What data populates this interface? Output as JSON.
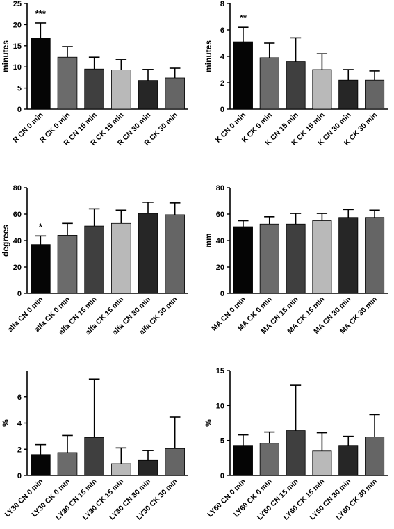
{
  "colors": {
    "bars": [
      "#050505",
      "#6b6b6b",
      "#3f3f3f",
      "#b9b9b9",
      "#262626",
      "#656565"
    ],
    "axis": "#000000",
    "error_bars": "#000000"
  },
  "chart_data": [
    {
      "type": "bar",
      "ylabel": "minutes",
      "ylim": [
        0,
        25
      ],
      "yticks": [
        0,
        5,
        10,
        15,
        20,
        25
      ],
      "categories": [
        "R CN 0 min",
        "R CK 0 min",
        "R CN 15 min",
        "R CK 15 min",
        "R CN 30 min",
        "R CK 30 min"
      ],
      "values": [
        16.8,
        12.3,
        9.5,
        9.3,
        6.8,
        7.4
      ],
      "errors": [
        3.6,
        2.5,
        2.8,
        2.4,
        2.6,
        2.3
      ],
      "annotations": [
        {
          "category": "R CN 0 min",
          "text": "***"
        }
      ],
      "grid": false
    },
    {
      "type": "bar",
      "ylabel": "minutes",
      "ylim": [
        0,
        8
      ],
      "yticks": [
        0,
        2,
        4,
        6,
        8
      ],
      "categories": [
        "K CN 0 min",
        "K CK 0 min",
        "K CN 15 min",
        "K CK 15 min",
        "K CN 30 min",
        "K CK 30 min"
      ],
      "values": [
        5.1,
        3.9,
        3.6,
        3.0,
        2.2,
        2.2
      ],
      "errors": [
        1.1,
        1.1,
        1.8,
        1.2,
        0.8,
        0.7
      ],
      "annotations": [
        {
          "category": "K CN 0 min",
          "text": "**"
        }
      ],
      "grid": false
    },
    {
      "type": "bar",
      "ylabel": "degrees",
      "ylim": [
        0,
        80
      ],
      "yticks": [
        0,
        20,
        40,
        60,
        80
      ],
      "categories": [
        "alfa CN 0 min",
        "alfa CK 0 min",
        "alfa CN 15 min",
        "alfa CK 15 min",
        "alfa CN 30 min",
        "alfa CK 30 min"
      ],
      "values": [
        37,
        44,
        51,
        53,
        60.5,
        59.5
      ],
      "errors": [
        6.5,
        9,
        13,
        10,
        8.5,
        9
      ],
      "annotations": [
        {
          "category": "alfa CN 0 min",
          "text": "*"
        }
      ],
      "grid": false
    },
    {
      "type": "bar",
      "ylabel": "mm",
      "ylim": [
        0,
        80
      ],
      "yticks": [
        0,
        20,
        40,
        60,
        80
      ],
      "categories": [
        "MA CN 0 min",
        "MA CK 0 min",
        "MA CN 15 min",
        "MA CK 15 min",
        "MA CN 30 min",
        "MA CK 30 min"
      ],
      "values": [
        50.5,
        52.5,
        52.5,
        55,
        57.5,
        57.5
      ],
      "errors": [
        4.5,
        5.5,
        8,
        5.5,
        6,
        5.5
      ],
      "annotations": [],
      "grid": false
    },
    {
      "type": "bar",
      "ylabel": "%",
      "ylim": [
        0,
        8
      ],
      "yticks": [
        0,
        2,
        4,
        6
      ],
      "categories": [
        "LY30 CN 0 min",
        "LY30 CK 0 min",
        "LY30 CN 15 min",
        "LY30 CK 15 min",
        "LY30 CN 30 min",
        "LY30 CK 30 min"
      ],
      "values": [
        1.6,
        1.75,
        2.9,
        0.9,
        1.15,
        2.05
      ],
      "errors": [
        0.75,
        1.3,
        4.45,
        1.2,
        0.75,
        2.4
      ],
      "annotations": [],
      "grid": false
    },
    {
      "type": "bar",
      "ylabel": "%",
      "ylim": [
        0,
        15
      ],
      "yticks": [
        0,
        5,
        10,
        15
      ],
      "categories": [
        "LY60 CN 0 min",
        "LY60 CK 0 min",
        "LY60 CN 15 min",
        "LY60 CK 15 min",
        "LY60 CN 30 min",
        "LY60 CK 30 min"
      ],
      "values": [
        4.3,
        4.6,
        6.4,
        3.5,
        4.3,
        5.5
      ],
      "errors": [
        1.5,
        1.6,
        6.5,
        2.6,
        1.3,
        3.2
      ],
      "annotations": [],
      "grid": false
    }
  ]
}
